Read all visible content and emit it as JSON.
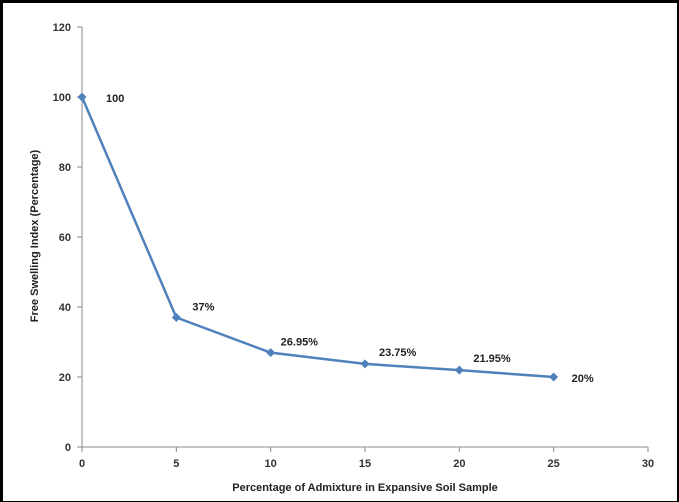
{
  "chart_data": {
    "type": "line",
    "title": "",
    "xlabel": "Percentage of Admixture in Expansive  Soil Sample",
    "ylabel": "Free Swelling Index (Percentage)",
    "xlim": [
      0,
      30
    ],
    "ylim": [
      0,
      120
    ],
    "x_ticks": [
      0,
      5,
      10,
      15,
      20,
      25,
      30
    ],
    "y_ticks": [
      0,
      20,
      40,
      60,
      80,
      100,
      120
    ],
    "grid": false,
    "legend": "none",
    "series": [
      {
        "x": [
          0,
          5,
          10,
          15,
          20,
          25
        ],
        "y": [
          100,
          37,
          26.95,
          23.75,
          21.95,
          20
        ],
        "labels": [
          "100",
          "37%",
          "26.95%",
          "23.75%",
          "21.95%",
          "20%"
        ],
        "color": "#4F81BD"
      }
    ],
    "x_tick_labels": [
      "0",
      "5",
      "10",
      "15",
      "20",
      "25",
      "30"
    ],
    "y_tick_labels": [
      "0",
      "20",
      "40",
      "60",
      "80",
      "100",
      "120"
    ]
  }
}
